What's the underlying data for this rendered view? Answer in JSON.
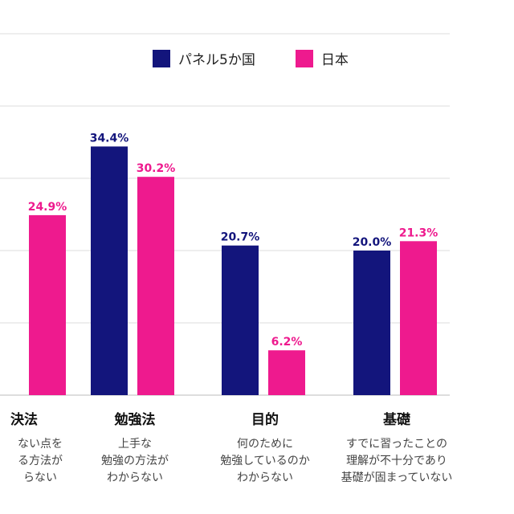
{
  "legend": {
    "series1": "パネル5か国",
    "series2": "日本"
  },
  "colors": {
    "series1": "#13157c",
    "series2": "#ee1a8e",
    "grid": "#dddddd",
    "axis": "#bbbbbb"
  },
  "categories": [
    {
      "title": "決法",
      "desc": "ない点を\nる方法が\nらない"
    },
    {
      "title": "勉強法",
      "desc": "上手な\n勉強の方法が\nわからない"
    },
    {
      "title": "目的",
      "desc": "何のために\n勉強しているのか\nわからない"
    },
    {
      "title": "基礎",
      "desc": "すでに習ったことの\n理解が不十分であり\n基礎が固まっていない"
    }
  ],
  "chart_data": {
    "type": "bar",
    "categories": [
      "決法",
      "勉強法",
      "目的",
      "基礎"
    ],
    "series": [
      {
        "name": "パネル5か国",
        "values": [
          null,
          34.4,
          20.7,
          20.0
        ],
        "labels": [
          "",
          "34.4%",
          "20.7%",
          "20.0%"
        ]
      },
      {
        "name": "日本",
        "values": [
          24.9,
          30.2,
          6.2,
          21.3
        ],
        "labels": [
          "24.9%",
          "30.2%",
          "6.2%",
          "21.3%"
        ]
      }
    ],
    "ylim": [
      0,
      50
    ],
    "grid": true,
    "legend_position": "top-right"
  }
}
